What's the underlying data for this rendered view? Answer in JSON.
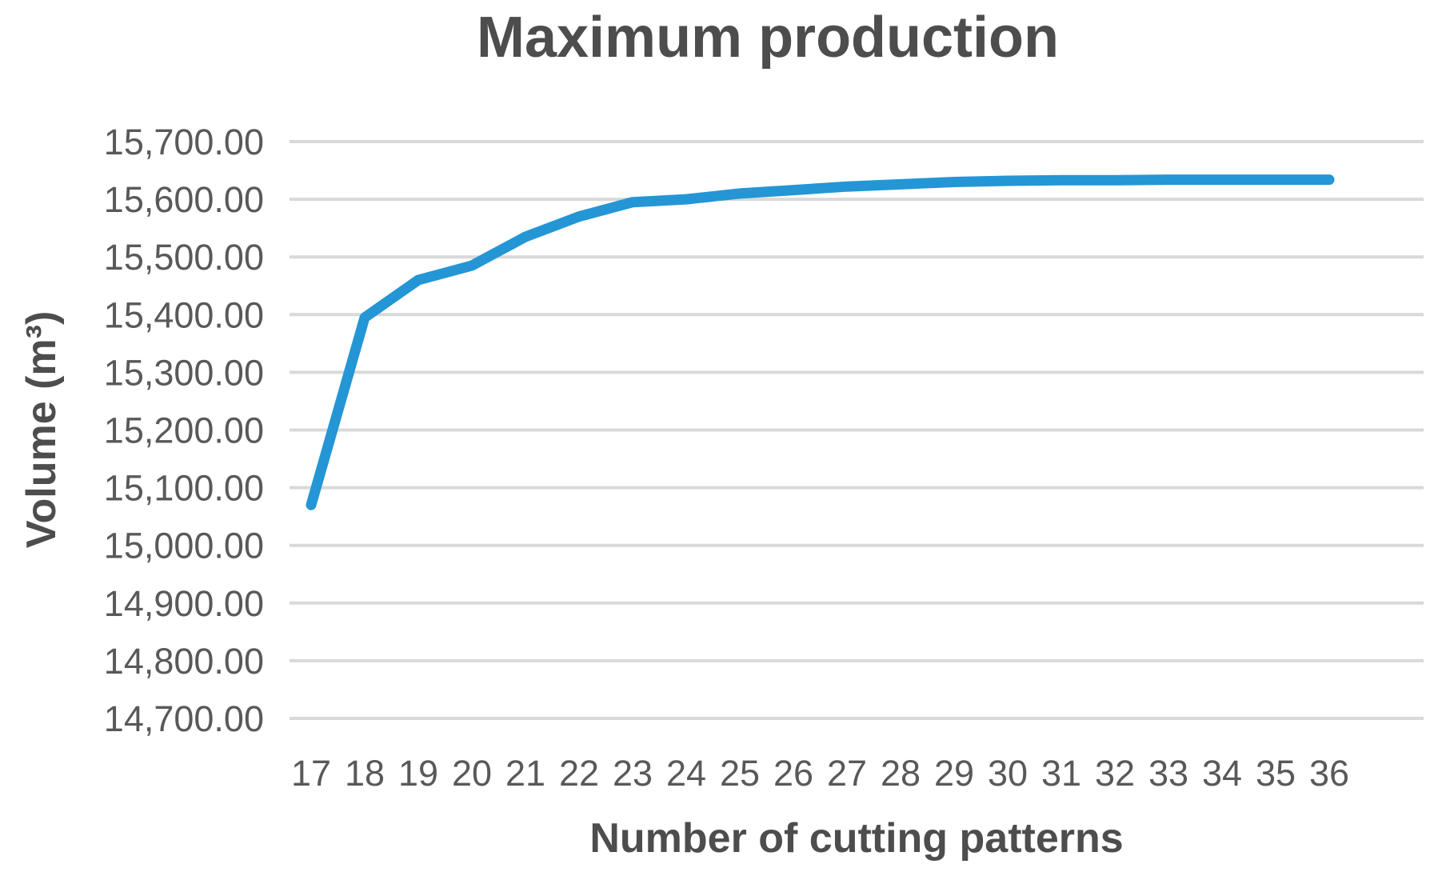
{
  "chart_data": {
    "type": "line",
    "title": "Maximum production",
    "xlabel": "Number of cutting patterns",
    "ylabel": "Volume (m³)",
    "x": [
      17,
      18,
      19,
      20,
      21,
      22,
      23,
      24,
      25,
      26,
      27,
      28,
      29,
      30,
      31,
      32,
      33,
      34,
      35,
      36
    ],
    "values": [
      15070,
      15395,
      15460,
      15485,
      15535,
      15570,
      15595,
      15600,
      15610,
      15616,
      15622,
      15626,
      15630,
      15632,
      15633,
      15633,
      15634,
      15634,
      15634,
      15634
    ],
    "ylim": [
      14700,
      15700
    ],
    "ytick_step": 100,
    "ytick_labels": [
      "14,700.00",
      "14,800.00",
      "14,900.00",
      "15,000.00",
      "15,100.00",
      "15,200.00",
      "15,300.00",
      "15,400.00",
      "15,500.00",
      "15,600.00",
      "15,700.00"
    ],
    "grid": "horizontal",
    "legend": "none",
    "colors": {
      "line": "#2496d5",
      "gridline": "#d9d9d9",
      "tick_text": "#595959",
      "title_text": "#4d4d4d"
    }
  }
}
